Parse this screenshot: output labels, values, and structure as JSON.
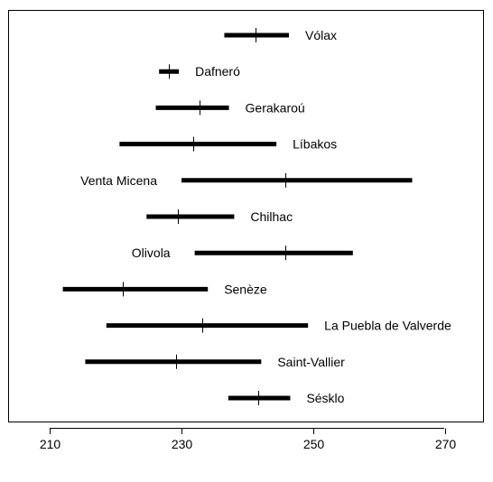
{
  "chart_data": {
    "type": "range-interval",
    "title": "",
    "xlabel": "",
    "ylabel": "",
    "xlim": [
      205,
      275
    ],
    "x_ticks": [
      210,
      230,
      250,
      270
    ],
    "grid": false,
    "legend": "none",
    "series": [
      {
        "label": "Vólax",
        "min": 236.5,
        "max": 246.3,
        "mean": 241.3,
        "label_side": "right"
      },
      {
        "label": "Dafneró",
        "min": 226.6,
        "max": 229.6,
        "mean": 228.1,
        "label_side": "right"
      },
      {
        "label": "Gerakaroú",
        "min": 226.1,
        "max": 237.2,
        "mean": 232.8,
        "label_side": "right"
      },
      {
        "label": "Líbakos",
        "min": 220.6,
        "max": 244.4,
        "mean": 231.8,
        "label_side": "right"
      },
      {
        "label": "Venta Micena",
        "min": 230.0,
        "max": 265.0,
        "mean": 245.8,
        "label_side": "left"
      },
      {
        "label": "Chilhac",
        "min": 224.7,
        "max": 238.0,
        "mean": 229.4,
        "label_side": "right"
      },
      {
        "label": "Olivola",
        "min": 232.0,
        "max": 256.0,
        "mean": 245.8,
        "label_side": "left"
      },
      {
        "label": "Senèze",
        "min": 212.0,
        "max": 234.0,
        "mean": 221.1,
        "label_side": "right"
      },
      {
        "label": "La Puebla de Valverde",
        "min": 218.6,
        "max": 249.2,
        "mean": 233.2,
        "label_side": "right"
      },
      {
        "label": "Saint-Vallier",
        "min": 215.4,
        "max": 242.1,
        "mean": 229.2,
        "label_side": "right"
      },
      {
        "label": "Sésklo",
        "min": 237.1,
        "max": 246.5,
        "mean": 241.6,
        "label_side": "right"
      }
    ]
  }
}
